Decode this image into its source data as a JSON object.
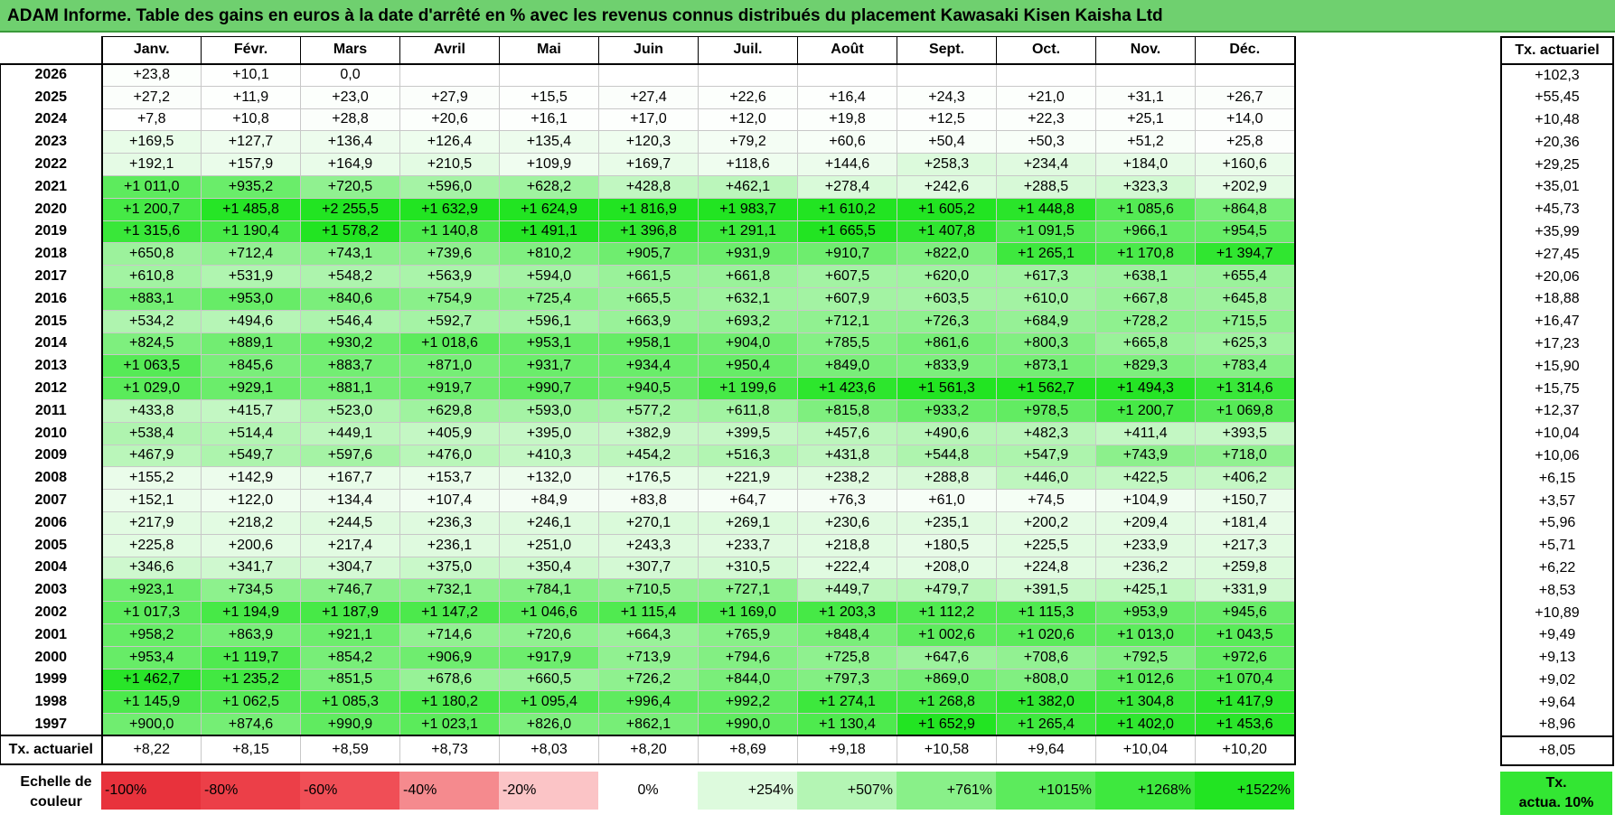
{
  "title": "ADAM Informe. Table des gains en euros à la date d'arrêté en % avec les revenus connus distribués du placement Kawasaki Kisen Kaisha Ltd",
  "chart_data": {
    "type": "table",
    "months": [
      "Janv.",
      "Févr.",
      "Mars",
      "Avril",
      "Mai",
      "Juin",
      "Juil.",
      "Août",
      "Sept.",
      "Oct.",
      "Nov.",
      "Déc."
    ],
    "side_header": "Tx. actuariel",
    "footer_label": "Tx. actuariel",
    "rows": [
      {
        "year": "2026",
        "values": [
          "+23,8",
          "+10,1",
          "0,0",
          "",
          "",
          "",
          "",
          "",
          "",
          "",
          "",
          ""
        ],
        "nums": [
          23.8,
          10.1,
          0,
          null,
          null,
          null,
          null,
          null,
          null,
          null,
          null,
          null
        ],
        "rate": "+102,3"
      },
      {
        "year": "2025",
        "values": [
          "+27,2",
          "+11,9",
          "+23,0",
          "+27,9",
          "+15,5",
          "+27,4",
          "+22,6",
          "+16,4",
          "+24,3",
          "+21,0",
          "+31,1",
          "+26,7"
        ],
        "nums": [
          27.2,
          11.9,
          23.0,
          27.9,
          15.5,
          27.4,
          22.6,
          16.4,
          24.3,
          21.0,
          31.1,
          26.7
        ],
        "rate": "+55,45"
      },
      {
        "year": "2024",
        "values": [
          "+7,8",
          "+10,8",
          "+28,8",
          "+20,6",
          "+16,1",
          "+17,0",
          "+12,0",
          "+19,8",
          "+12,5",
          "+22,3",
          "+25,1",
          "+14,0"
        ],
        "nums": [
          7.8,
          10.8,
          28.8,
          20.6,
          16.1,
          17.0,
          12.0,
          19.8,
          12.5,
          22.3,
          25.1,
          14.0
        ],
        "rate": "+10,48"
      },
      {
        "year": "2023",
        "values": [
          "+169,5",
          "+127,7",
          "+136,4",
          "+126,4",
          "+135,4",
          "+120,3",
          "+79,2",
          "+60,6",
          "+50,4",
          "+50,3",
          "+51,2",
          "+25,8"
        ],
        "nums": [
          169.5,
          127.7,
          136.4,
          126.4,
          135.4,
          120.3,
          79.2,
          60.6,
          50.4,
          50.3,
          51.2,
          25.8
        ],
        "rate": "+20,36"
      },
      {
        "year": "2022",
        "values": [
          "+192,1",
          "+157,9",
          "+164,9",
          "+210,5",
          "+109,9",
          "+169,7",
          "+118,6",
          "+144,6",
          "+258,3",
          "+234,4",
          "+184,0",
          "+160,6"
        ],
        "nums": [
          192.1,
          157.9,
          164.9,
          210.5,
          109.9,
          169.7,
          118.6,
          144.6,
          258.3,
          234.4,
          184.0,
          160.6
        ],
        "rate": "+29,25"
      },
      {
        "year": "2021",
        "values": [
          "+1 011,0",
          "+935,2",
          "+720,5",
          "+596,0",
          "+628,2",
          "+428,8",
          "+462,1",
          "+278,4",
          "+242,6",
          "+288,5",
          "+323,3",
          "+202,9"
        ],
        "nums": [
          1011.0,
          935.2,
          720.5,
          596.0,
          628.2,
          428.8,
          462.1,
          278.4,
          242.6,
          288.5,
          323.3,
          202.9
        ],
        "rate": "+35,01"
      },
      {
        "year": "2020",
        "values": [
          "+1 200,7",
          "+1 485,8",
          "+2 255,5",
          "+1 632,9",
          "+1 624,9",
          "+1 816,9",
          "+1 983,7",
          "+1 610,2",
          "+1 605,2",
          "+1 448,8",
          "+1 085,6",
          "+864,8"
        ],
        "nums": [
          1200.7,
          1485.8,
          2255.5,
          1632.9,
          1624.9,
          1816.9,
          1983.7,
          1610.2,
          1605.2,
          1448.8,
          1085.6,
          864.8
        ],
        "rate": "+45,73"
      },
      {
        "year": "2019",
        "values": [
          "+1 315,6",
          "+1 190,4",
          "+1 578,2",
          "+1 140,8",
          "+1 491,1",
          "+1 396,8",
          "+1 291,1",
          "+1 665,5",
          "+1 407,8",
          "+1 091,5",
          "+966,1",
          "+954,5"
        ],
        "nums": [
          1315.6,
          1190.4,
          1578.2,
          1140.8,
          1491.1,
          1396.8,
          1291.1,
          1665.5,
          1407.8,
          1091.5,
          966.1,
          954.5
        ],
        "rate": "+35,99"
      },
      {
        "year": "2018",
        "values": [
          "+650,8",
          "+712,4",
          "+743,1",
          "+739,6",
          "+810,2",
          "+905,7",
          "+931,9",
          "+910,7",
          "+822,0",
          "+1 265,1",
          "+1 170,8",
          "+1 394,7"
        ],
        "nums": [
          650.8,
          712.4,
          743.1,
          739.6,
          810.2,
          905.7,
          931.9,
          910.7,
          822.0,
          1265.1,
          1170.8,
          1394.7
        ],
        "rate": "+27,45"
      },
      {
        "year": "2017",
        "values": [
          "+610,8",
          "+531,9",
          "+548,2",
          "+563,9",
          "+594,0",
          "+661,5",
          "+661,8",
          "+607,5",
          "+620,0",
          "+617,3",
          "+638,1",
          "+655,4"
        ],
        "nums": [
          610.8,
          531.9,
          548.2,
          563.9,
          594.0,
          661.5,
          661.8,
          607.5,
          620.0,
          617.3,
          638.1,
          655.4
        ],
        "rate": "+20,06"
      },
      {
        "year": "2016",
        "values": [
          "+883,1",
          "+953,0",
          "+840,6",
          "+754,9",
          "+725,4",
          "+665,5",
          "+632,1",
          "+607,9",
          "+603,5",
          "+610,0",
          "+667,8",
          "+645,8"
        ],
        "nums": [
          883.1,
          953.0,
          840.6,
          754.9,
          725.4,
          665.5,
          632.1,
          607.9,
          603.5,
          610.0,
          667.8,
          645.8
        ],
        "rate": "+18,88"
      },
      {
        "year": "2015",
        "values": [
          "+534,2",
          "+494,6",
          "+546,4",
          "+592,7",
          "+596,1",
          "+663,9",
          "+693,2",
          "+712,1",
          "+726,3",
          "+684,9",
          "+728,2",
          "+715,5"
        ],
        "nums": [
          534.2,
          494.6,
          546.4,
          592.7,
          596.1,
          663.9,
          693.2,
          712.1,
          726.3,
          684.9,
          728.2,
          715.5
        ],
        "rate": "+16,47"
      },
      {
        "year": "2014",
        "values": [
          "+824,5",
          "+889,1",
          "+930,2",
          "+1 018,6",
          "+953,1",
          "+958,1",
          "+904,0",
          "+785,5",
          "+861,6",
          "+800,3",
          "+665,8",
          "+625,3"
        ],
        "nums": [
          824.5,
          889.1,
          930.2,
          1018.6,
          953.1,
          958.1,
          904.0,
          785.5,
          861.6,
          800.3,
          665.8,
          625.3
        ],
        "rate": "+17,23"
      },
      {
        "year": "2013",
        "values": [
          "+1 063,5",
          "+845,6",
          "+883,7",
          "+871,0",
          "+931,7",
          "+934,4",
          "+950,4",
          "+849,0",
          "+833,9",
          "+873,1",
          "+829,3",
          "+783,4"
        ],
        "nums": [
          1063.5,
          845.6,
          883.7,
          871.0,
          931.7,
          934.4,
          950.4,
          849.0,
          833.9,
          873.1,
          829.3,
          783.4
        ],
        "rate": "+15,90"
      },
      {
        "year": "2012",
        "values": [
          "+1 029,0",
          "+929,1",
          "+881,1",
          "+919,7",
          "+990,7",
          "+940,5",
          "+1 199,6",
          "+1 423,6",
          "+1 561,3",
          "+1 562,7",
          "+1 494,3",
          "+1 314,6"
        ],
        "nums": [
          1029.0,
          929.1,
          881.1,
          919.7,
          990.7,
          940.5,
          1199.6,
          1423.6,
          1561.3,
          1562.7,
          1494.3,
          1314.6
        ],
        "rate": "+15,75"
      },
      {
        "year": "2011",
        "values": [
          "+433,8",
          "+415,7",
          "+523,0",
          "+629,8",
          "+593,0",
          "+577,2",
          "+611,8",
          "+815,8",
          "+933,2",
          "+978,5",
          "+1 200,7",
          "+1 069,8"
        ],
        "nums": [
          433.8,
          415.7,
          523.0,
          629.8,
          593.0,
          577.2,
          611.8,
          815.8,
          933.2,
          978.5,
          1200.7,
          1069.8
        ],
        "rate": "+12,37"
      },
      {
        "year": "2010",
        "values": [
          "+538,4",
          "+514,4",
          "+449,1",
          "+405,9",
          "+395,0",
          "+382,9",
          "+399,5",
          "+457,6",
          "+490,6",
          "+482,3",
          "+411,4",
          "+393,5"
        ],
        "nums": [
          538.4,
          514.4,
          449.1,
          405.9,
          395.0,
          382.9,
          399.5,
          457.6,
          490.6,
          482.3,
          411.4,
          393.5
        ],
        "rate": "+10,04"
      },
      {
        "year": "2009",
        "values": [
          "+467,9",
          "+549,7",
          "+597,6",
          "+476,0",
          "+410,3",
          "+454,2",
          "+516,3",
          "+431,8",
          "+544,8",
          "+547,9",
          "+743,9",
          "+718,0"
        ],
        "nums": [
          467.9,
          549.7,
          597.6,
          476.0,
          410.3,
          454.2,
          516.3,
          431.8,
          544.8,
          547.9,
          743.9,
          718.0
        ],
        "rate": "+10,06"
      },
      {
        "year": "2008",
        "values": [
          "+155,2",
          "+142,9",
          "+167,7",
          "+153,7",
          "+132,0",
          "+176,5",
          "+221,9",
          "+238,2",
          "+288,8",
          "+446,0",
          "+422,5",
          "+406,2"
        ],
        "nums": [
          155.2,
          142.9,
          167.7,
          153.7,
          132.0,
          176.5,
          221.9,
          238.2,
          288.8,
          446.0,
          422.5,
          406.2
        ],
        "rate": "+6,15"
      },
      {
        "year": "2007",
        "values": [
          "+152,1",
          "+122,0",
          "+134,4",
          "+107,4",
          "+84,9",
          "+83,8",
          "+64,7",
          "+76,3",
          "+61,0",
          "+74,5",
          "+104,9",
          "+150,7"
        ],
        "nums": [
          152.1,
          122.0,
          134.4,
          107.4,
          84.9,
          83.8,
          64.7,
          76.3,
          61.0,
          74.5,
          104.9,
          150.7
        ],
        "rate": "+3,57"
      },
      {
        "year": "2006",
        "values": [
          "+217,9",
          "+218,2",
          "+244,5",
          "+236,3",
          "+246,1",
          "+270,1",
          "+269,1",
          "+230,6",
          "+235,1",
          "+200,2",
          "+209,4",
          "+181,4"
        ],
        "nums": [
          217.9,
          218.2,
          244.5,
          236.3,
          246.1,
          270.1,
          269.1,
          230.6,
          235.1,
          200.2,
          209.4,
          181.4
        ],
        "rate": "+5,96"
      },
      {
        "year": "2005",
        "values": [
          "+225,8",
          "+200,6",
          "+217,4",
          "+236,1",
          "+251,0",
          "+243,3",
          "+233,7",
          "+218,8",
          "+180,5",
          "+225,5",
          "+233,9",
          "+217,3"
        ],
        "nums": [
          225.8,
          200.6,
          217.4,
          236.1,
          251.0,
          243.3,
          233.7,
          218.8,
          180.5,
          225.5,
          233.9,
          217.3
        ],
        "rate": "+5,71"
      },
      {
        "year": "2004",
        "values": [
          "+346,6",
          "+341,7",
          "+304,7",
          "+375,0",
          "+350,4",
          "+307,7",
          "+310,5",
          "+222,4",
          "+208,0",
          "+224,8",
          "+236,2",
          "+259,8"
        ],
        "nums": [
          346.6,
          341.7,
          304.7,
          375.0,
          350.4,
          307.7,
          310.5,
          222.4,
          208.0,
          224.8,
          236.2,
          259.8
        ],
        "rate": "+6,22"
      },
      {
        "year": "2003",
        "values": [
          "+923,1",
          "+734,5",
          "+746,7",
          "+732,1",
          "+784,1",
          "+710,5",
          "+727,1",
          "+449,7",
          "+479,7",
          "+391,5",
          "+425,1",
          "+331,9"
        ],
        "nums": [
          923.1,
          734.5,
          746.7,
          732.1,
          784.1,
          710.5,
          727.1,
          449.7,
          479.7,
          391.5,
          425.1,
          331.9
        ],
        "rate": "+8,53"
      },
      {
        "year": "2002",
        "values": [
          "+1 017,3",
          "+1 194,9",
          "+1 187,9",
          "+1 147,2",
          "+1 046,6",
          "+1 115,4",
          "+1 169,0",
          "+1 203,3",
          "+1 112,2",
          "+1 115,3",
          "+953,9",
          "+945,6"
        ],
        "nums": [
          1017.3,
          1194.9,
          1187.9,
          1147.2,
          1046.6,
          1115.4,
          1169.0,
          1203.3,
          1112.2,
          1115.3,
          953.9,
          945.6
        ],
        "rate": "+10,89"
      },
      {
        "year": "2001",
        "values": [
          "+958,2",
          "+863,9",
          "+921,1",
          "+714,6",
          "+720,6",
          "+664,3",
          "+765,9",
          "+848,4",
          "+1 002,6",
          "+1 020,6",
          "+1 013,0",
          "+1 043,5"
        ],
        "nums": [
          958.2,
          863.9,
          921.1,
          714.6,
          720.6,
          664.3,
          765.9,
          848.4,
          1002.6,
          1020.6,
          1013.0,
          1043.5
        ],
        "rate": "+9,49"
      },
      {
        "year": "2000",
        "values": [
          "+953,4",
          "+1 119,7",
          "+854,2",
          "+906,9",
          "+917,9",
          "+713,9",
          "+794,6",
          "+725,8",
          "+647,6",
          "+708,6",
          "+792,5",
          "+972,6"
        ],
        "nums": [
          953.4,
          1119.7,
          854.2,
          906.9,
          917.9,
          713.9,
          794.6,
          725.8,
          647.6,
          708.6,
          792.5,
          972.6
        ],
        "rate": "+9,13"
      },
      {
        "year": "1999",
        "values": [
          "+1 462,7",
          "+1 235,2",
          "+851,5",
          "+678,6",
          "+660,5",
          "+726,2",
          "+844,0",
          "+797,3",
          "+869,0",
          "+808,0",
          "+1 012,6",
          "+1 070,4"
        ],
        "nums": [
          1462.7,
          1235.2,
          851.5,
          678.6,
          660.5,
          726.2,
          844.0,
          797.3,
          869.0,
          808.0,
          1012.6,
          1070.4
        ],
        "rate": "+9,02"
      },
      {
        "year": "1998",
        "values": [
          "+1 145,9",
          "+1 062,5",
          "+1 085,3",
          "+1 180,2",
          "+1 095,4",
          "+996,4",
          "+992,2",
          "+1 274,1",
          "+1 268,8",
          "+1 382,0",
          "+1 304,8",
          "+1 417,9"
        ],
        "nums": [
          1145.9,
          1062.5,
          1085.3,
          1180.2,
          1095.4,
          996.4,
          992.2,
          1274.1,
          1268.8,
          1382.0,
          1304.8,
          1417.9
        ],
        "rate": "+9,64"
      },
      {
        "year": "1997",
        "values": [
          "+900,0",
          "+874,6",
          "+990,9",
          "+1 023,1",
          "+826,0",
          "+862,1",
          "+990,0",
          "+1 130,4",
          "+1 652,9",
          "+1 265,4",
          "+1 402,0",
          "+1 453,6"
        ],
        "nums": [
          900.0,
          874.6,
          990.9,
          1023.1,
          826.0,
          862.1,
          990.0,
          1130.4,
          1652.9,
          1265.4,
          1402.0,
          1453.6
        ],
        "rate": "+8,96"
      }
    ],
    "footer_values": [
      "+8,22",
      "+8,15",
      "+8,59",
      "+8,73",
      "+8,03",
      "+8,20",
      "+8,69",
      "+9,18",
      "+10,58",
      "+9,64",
      "+10,04",
      "+10,20"
    ],
    "footer_rate": "+8,05",
    "color_scale": {
      "label_line1": "Echelle de",
      "label_line2": "couleur",
      "steps": [
        {
          "label": "-100%",
          "color": "#e8323c",
          "kind": "neg"
        },
        {
          "label": "-80%",
          "color": "#ec3f48",
          "kind": "neg"
        },
        {
          "label": "-60%",
          "color": "#f04e56",
          "kind": "neg"
        },
        {
          "label": "-40%",
          "color": "#f58a8e",
          "kind": "neg"
        },
        {
          "label": "-20%",
          "color": "#fbc4c6",
          "kind": "neg"
        },
        {
          "label": "0%",
          "color": "#ffffff",
          "kind": "zero"
        },
        {
          "label": "+254%",
          "color": "#ddfadd",
          "kind": "pos"
        },
        {
          "label": "+507%",
          "color": "#b4f5b4",
          "kind": "pos"
        },
        {
          "label": "+761%",
          "color": "#89f089",
          "kind": "pos"
        },
        {
          "label": "+1015%",
          "color": "#5ceb5c",
          "kind": "pos"
        },
        {
          "label": "+1268%",
          "color": "#3ee83e",
          "kind": "pos"
        },
        {
          "label": "+1522%",
          "color": "#22e422",
          "kind": "pos"
        }
      ],
      "actua_line1": "Tx.",
      "actua_line2": "actua. 10%",
      "actua_color": "#33e633"
    }
  }
}
